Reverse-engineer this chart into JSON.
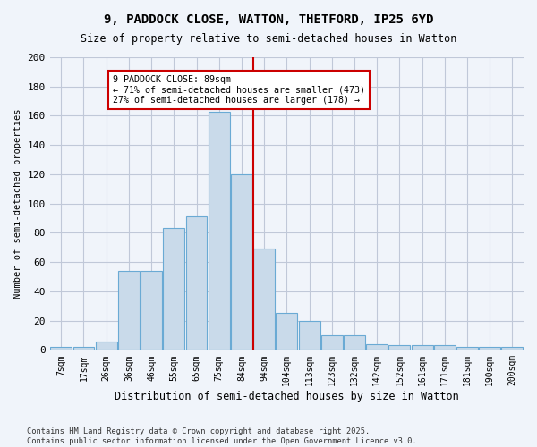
{
  "title": "9, PADDOCK CLOSE, WATTON, THETFORD, IP25 6YD",
  "subtitle": "Size of property relative to semi-detached houses in Watton",
  "xlabel": "Distribution of semi-detached houses by size in Watton",
  "ylabel": "Number of semi-detached properties",
  "bin_labels": [
    "7sqm",
    "17sqm",
    "26sqm",
    "36sqm",
    "46sqm",
    "55sqm",
    "65sqm",
    "75sqm",
    "84sqm",
    "94sqm",
    "104sqm",
    "113sqm",
    "123sqm",
    "132sqm",
    "142sqm",
    "152sqm",
    "161sqm",
    "171sqm",
    "181sqm",
    "190sqm",
    "200sqm"
  ],
  "bar_values": [
    2,
    2,
    6,
    54,
    54,
    83,
    91,
    163,
    120,
    69,
    25,
    20,
    10,
    10,
    4,
    3,
    3,
    3,
    2,
    2,
    2
  ],
  "bar_color": "#c9daea",
  "bar_edge_color": "#6aaad4",
  "property_bin_index": 8,
  "annotation_title": "9 PADDOCK CLOSE: 89sqm",
  "annotation_line1": "← 71% of semi-detached houses are smaller (473)",
  "annotation_line2": "27% of semi-detached houses are larger (178) →",
  "annotation_box_color": "#ffffff",
  "annotation_box_edge": "#cc0000",
  "vline_color": "#cc0000",
  "grid_color": "#c0c8d8",
  "background_color": "#f0f4fa",
  "footer": "Contains HM Land Registry data © Crown copyright and database right 2025.\nContains public sector information licensed under the Open Government Licence v3.0.",
  "ylim": [
    0,
    200
  ],
  "yticks": [
    0,
    20,
    40,
    60,
    80,
    100,
    120,
    140,
    160,
    180,
    200
  ]
}
